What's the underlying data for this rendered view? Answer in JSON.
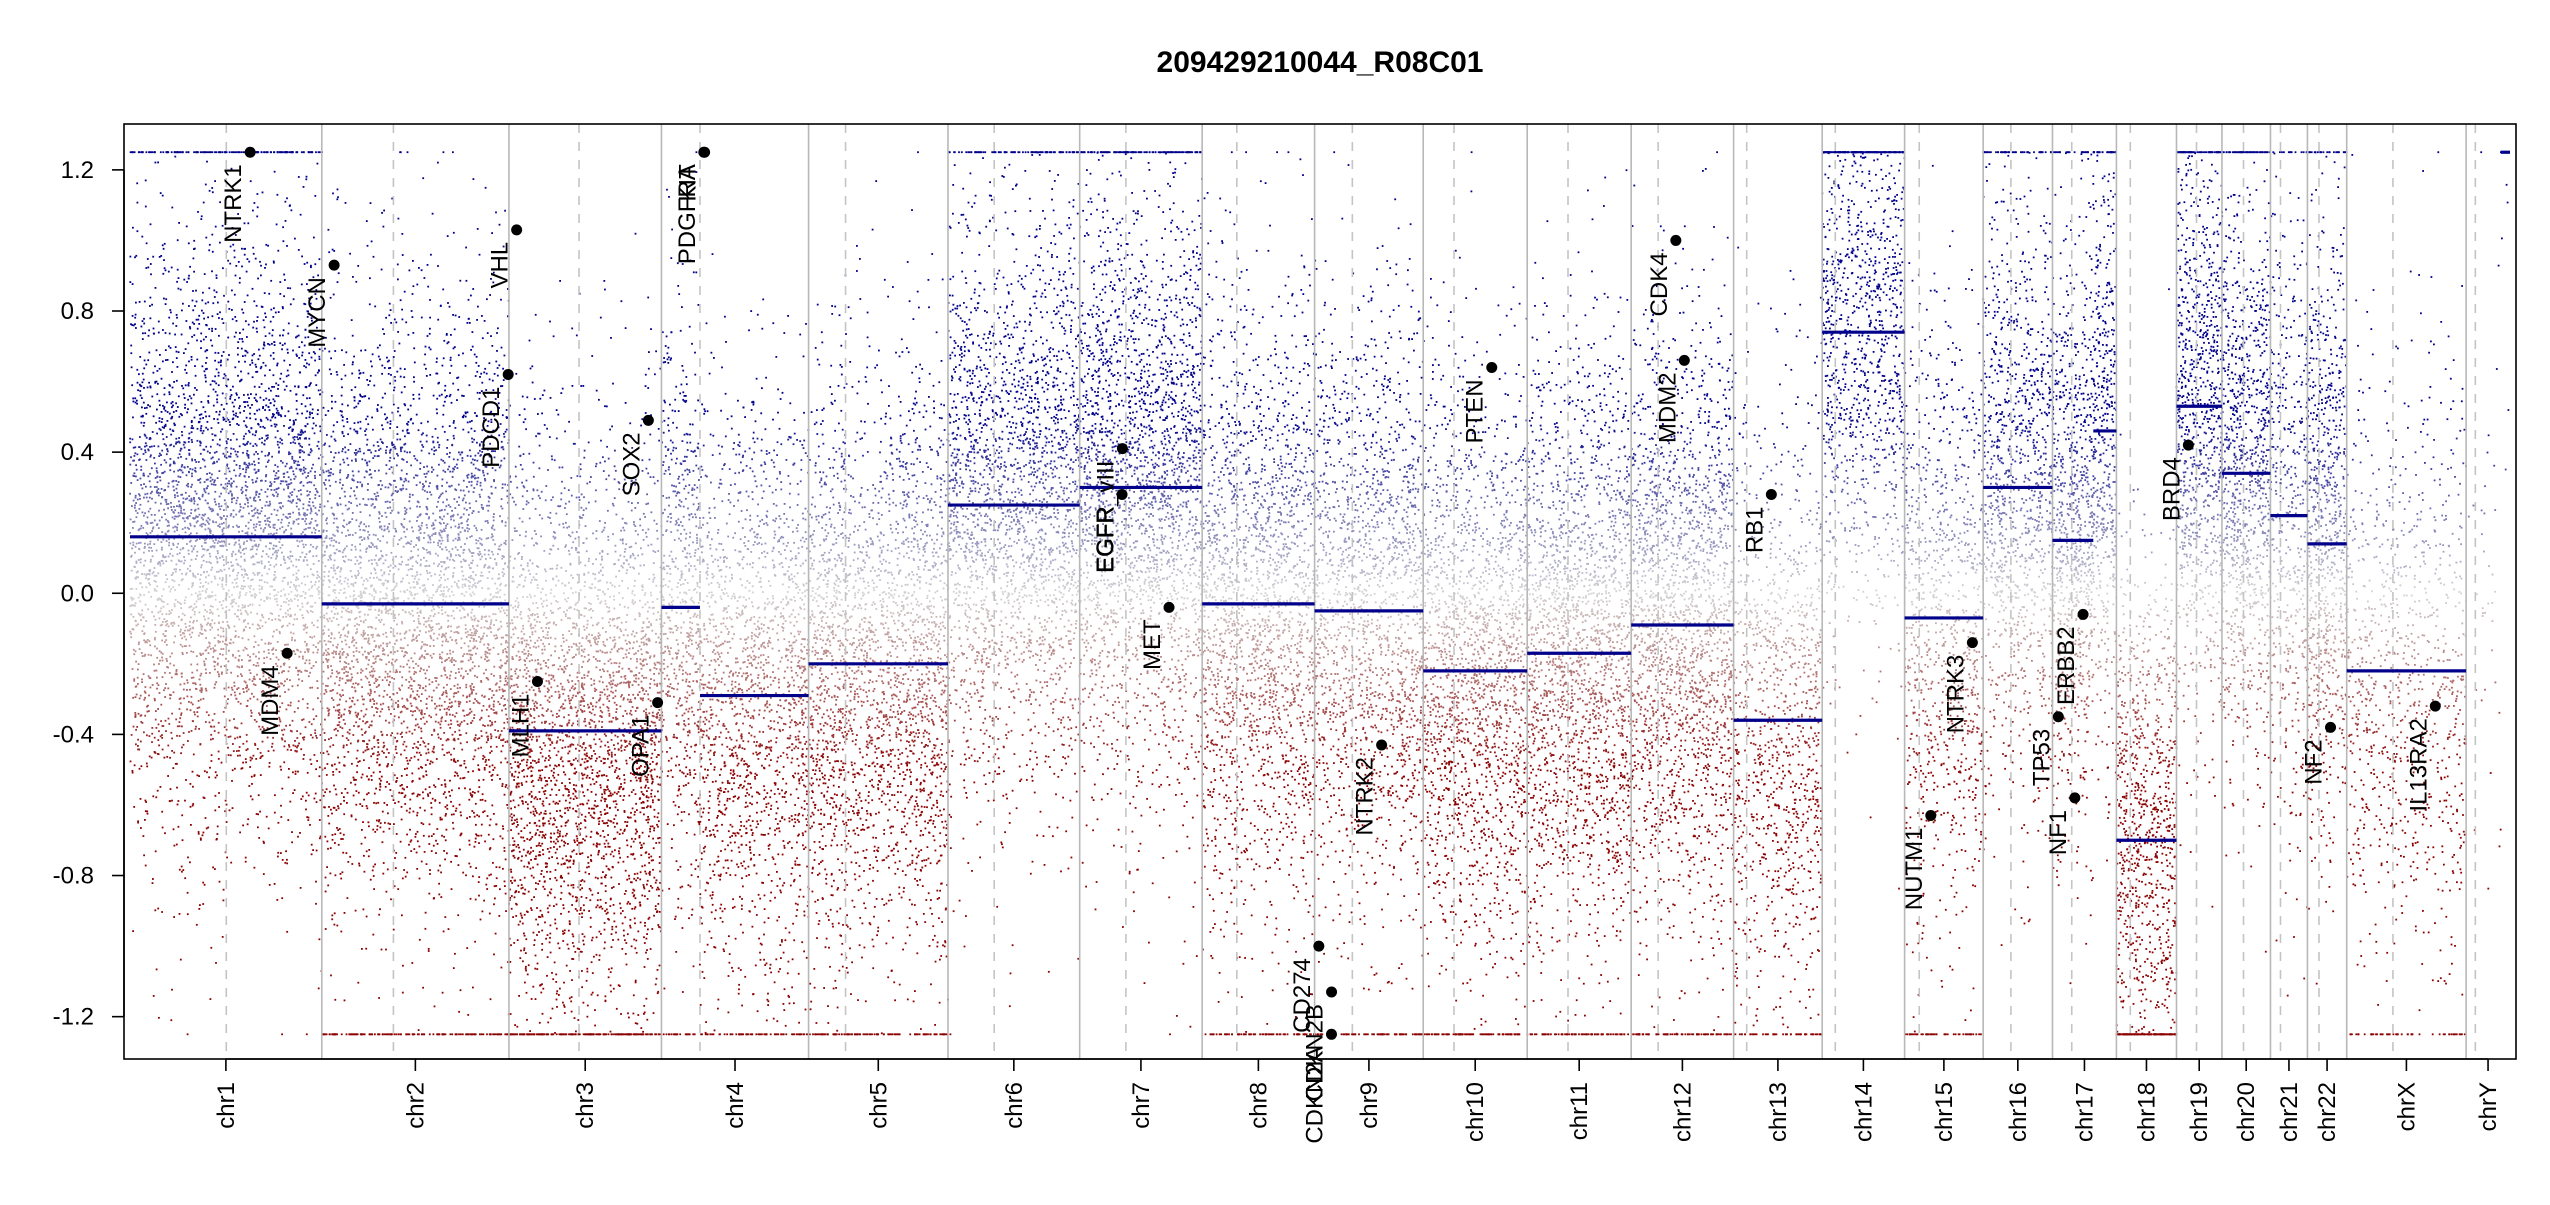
{
  "chart_data": {
    "type": "scatter",
    "title": "209429210044_R08C01",
    "xlabel": "",
    "ylabel": "",
    "ylim": [
      -1.32,
      1.33
    ],
    "y_ticks": [
      -1.2,
      -0.8,
      -0.4,
      0.0,
      0.4,
      0.8,
      1.2
    ],
    "y_tick_labels": [
      "-1.2",
      "-0.8",
      "-0.4",
      "0.0",
      "0.4",
      "0.8",
      "1.2"
    ],
    "clip": 1.25,
    "grid": false,
    "legend": "none",
    "colors": {
      "gain": "#00008b",
      "loss": "#8b0000",
      "neutral": "#d3d3d3",
      "segment": "#00008b",
      "chr_boundary": "#b8b8b8",
      "centromere": "#c4c4c4"
    },
    "chromosomes": [
      {
        "name": "chr1",
        "length": 249,
        "centromere": 125,
        "density": 1.0,
        "segments": [
          {
            "start": 0,
            "end": 249,
            "value": 0.16
          }
        ]
      },
      {
        "name": "chr2",
        "length": 243,
        "centromere": 93,
        "density": 1.0,
        "segments": [
          {
            "start": 0,
            "end": 243,
            "value": -0.03
          }
        ]
      },
      {
        "name": "chr3",
        "length": 198,
        "centromere": 91,
        "density": 1.0,
        "segments": [
          {
            "start": 0,
            "end": 175,
            "value": -0.39
          },
          {
            "start": 175,
            "end": 198,
            "value": -0.39
          }
        ]
      },
      {
        "name": "chr4",
        "length": 191,
        "centromere": 50,
        "density": 0.8,
        "segments": [
          {
            "start": 0,
            "end": 50,
            "value": -0.04
          },
          {
            "start": 50,
            "end": 191,
            "value": -0.29
          }
        ]
      },
      {
        "name": "chr5",
        "length": 181,
        "centromere": 48,
        "density": 0.9,
        "segments": [
          {
            "start": 0,
            "end": 181,
            "value": -0.2
          }
        ]
      },
      {
        "name": "chr6",
        "length": 171,
        "centromere": 60,
        "density": 0.9,
        "segments": [
          {
            "start": 0,
            "end": 171,
            "value": 0.25
          }
        ]
      },
      {
        "name": "chr7",
        "length": 159,
        "centromere": 60,
        "density": 1.0,
        "segments": [
          {
            "start": 0,
            "end": 159,
            "value": 0.3
          }
        ]
      },
      {
        "name": "chr8",
        "length": 146,
        "centromere": 45,
        "density": 0.9,
        "segments": [
          {
            "start": 0,
            "end": 146,
            "value": -0.03
          }
        ]
      },
      {
        "name": "chr9",
        "length": 141,
        "centromere": 49,
        "density": 0.8,
        "segments": [
          {
            "start": 0,
            "end": 141,
            "value": -0.05
          }
        ]
      },
      {
        "name": "chr10",
        "length": 135,
        "centromere": 40,
        "density": 0.9,
        "segments": [
          {
            "start": 0,
            "end": 135,
            "value": -0.22
          }
        ]
      },
      {
        "name": "chr11",
        "length": 135,
        "centromere": 53,
        "density": 1.0,
        "segments": [
          {
            "start": 0,
            "end": 135,
            "value": -0.17
          }
        ]
      },
      {
        "name": "chr12",
        "length": 133,
        "centromere": 35,
        "density": 1.0,
        "segments": [
          {
            "start": 0,
            "end": 133,
            "value": -0.09
          }
        ]
      },
      {
        "name": "chr13",
        "length": 115,
        "centromere": 17,
        "density": 0.6,
        "segments": [
          {
            "start": 0,
            "end": 115,
            "value": -0.36
          }
        ]
      },
      {
        "name": "chr14",
        "length": 107,
        "centromere": 17,
        "density": 0.7,
        "segments": [
          {
            "start": 0,
            "end": 107,
            "value": 0.74
          }
        ]
      },
      {
        "name": "chr15",
        "length": 102,
        "centromere": 19,
        "density": 0.6,
        "segments": [
          {
            "start": 0,
            "end": 102,
            "value": -0.07
          }
        ]
      },
      {
        "name": "chr16",
        "length": 90,
        "centromere": 36,
        "density": 0.8,
        "segments": [
          {
            "start": 0,
            "end": 90,
            "value": 0.3
          }
        ]
      },
      {
        "name": "chr17",
        "length": 83,
        "centromere": 25,
        "density": 1.0,
        "segments": [
          {
            "start": 0,
            "end": 53,
            "value": 0.15
          },
          {
            "start": 53,
            "end": 83,
            "value": 0.46
          }
        ]
      },
      {
        "name": "chr18",
        "length": 78,
        "centromere": 18,
        "density": 0.8,
        "segments": [
          {
            "start": 0,
            "end": 78,
            "value": -0.7
          }
        ]
      },
      {
        "name": "chr19",
        "length": 59,
        "centromere": 26,
        "density": 1.0,
        "segments": [
          {
            "start": 0,
            "end": 59,
            "value": 0.53
          }
        ]
      },
      {
        "name": "chr20",
        "length": 63,
        "centromere": 28,
        "density": 1.0,
        "segments": [
          {
            "start": 0,
            "end": 63,
            "value": 0.34
          }
        ]
      },
      {
        "name": "chr21",
        "length": 48,
        "centromere": 13,
        "density": 0.6,
        "segments": [
          {
            "start": 0,
            "end": 48,
            "value": 0.22
          }
        ]
      },
      {
        "name": "chr22",
        "length": 51,
        "centromere": 15,
        "density": 1.0,
        "segments": [
          {
            "start": 0,
            "end": 51,
            "value": 0.14
          }
        ]
      },
      {
        "name": "chrX",
        "length": 155,
        "centromere": 60,
        "density": 0.4,
        "segments": [
          {
            "start": 0,
            "end": 155,
            "value": -0.22
          }
        ]
      },
      {
        "name": "chrY",
        "length": 57,
        "centromere": 12,
        "density": 0.05,
        "segments": [
          {
            "start": 45,
            "end": 57,
            "value": 1.25
          }
        ]
      }
    ],
    "genes": [
      {
        "name": "NTRK1",
        "chr": "chr1",
        "pos": 156,
        "value": 1.25
      },
      {
        "name": "MYCN",
        "chr": "chr2",
        "pos": 16,
        "value": 0.93
      },
      {
        "name": "MDM4",
        "chr": "chr1",
        "pos": 204,
        "value": -0.17
      },
      {
        "name": "PDCD1",
        "chr": "chr2",
        "pos": 242,
        "value": 0.62
      },
      {
        "name": "VHL",
        "chr": "chr3",
        "pos": 10,
        "value": 1.03
      },
      {
        "name": "MLH1",
        "chr": "chr3",
        "pos": 37,
        "value": -0.25
      },
      {
        "name": "SOX2",
        "chr": "chr3",
        "pos": 181,
        "value": 0.49
      },
      {
        "name": "OPA1",
        "chr": "chr3",
        "pos": 193,
        "value": -0.31
      },
      {
        "name": "PDGFRA",
        "chr": "chr4",
        "pos": 55,
        "value": 1.25
      },
      {
        "name": "KIT",
        "chr": "chr4",
        "pos": 56,
        "value": 1.25
      },
      {
        "name": "EGFR",
        "chr": "chr7",
        "pos": 55,
        "value": 0.28
      },
      {
        "name": "EGFR_vIII",
        "chr": "chr7",
        "pos": 55.5,
        "value": 0.41
      },
      {
        "name": "MET",
        "chr": "chr7",
        "pos": 116,
        "value": -0.04
      },
      {
        "name": "CD274",
        "chr": "chr9",
        "pos": 5.5,
        "value": -1.0
      },
      {
        "name": "CDKN2A",
        "chr": "chr9",
        "pos": 21.9,
        "value": -1.25
      },
      {
        "name": "CDKN2B",
        "chr": "chr9",
        "pos": 22,
        "value": -1.13
      },
      {
        "name": "NTRK2",
        "chr": "chr9",
        "pos": 87,
        "value": -0.43
      },
      {
        "name": "PTEN",
        "chr": "chr10",
        "pos": 89,
        "value": 0.64
      },
      {
        "name": "CDK4",
        "chr": "chr12",
        "pos": 58,
        "value": 1.0
      },
      {
        "name": "MDM2",
        "chr": "chr12",
        "pos": 69,
        "value": 0.66
      },
      {
        "name": "RB1",
        "chr": "chr13",
        "pos": 49,
        "value": 0.28
      },
      {
        "name": "NUTM1",
        "chr": "chr15",
        "pos": 34,
        "value": -0.63
      },
      {
        "name": "NTRK3",
        "chr": "chr15",
        "pos": 88,
        "value": -0.14
      },
      {
        "name": "TP53",
        "chr": "chr17",
        "pos": 7.6,
        "value": -0.35
      },
      {
        "name": "NF1",
        "chr": "chr17",
        "pos": 29,
        "value": -0.58
      },
      {
        "name": "ERBB2",
        "chr": "chr17",
        "pos": 39.7,
        "value": -0.06
      },
      {
        "name": "BRD4",
        "chr": "chr19",
        "pos": 15.4,
        "value": 0.42
      },
      {
        "name": "NF2",
        "chr": "chr22",
        "pos": 30,
        "value": -0.38
      },
      {
        "name": "IL13RA2",
        "chr": "chrX",
        "pos": 115,
        "value": -0.32
      }
    ]
  }
}
